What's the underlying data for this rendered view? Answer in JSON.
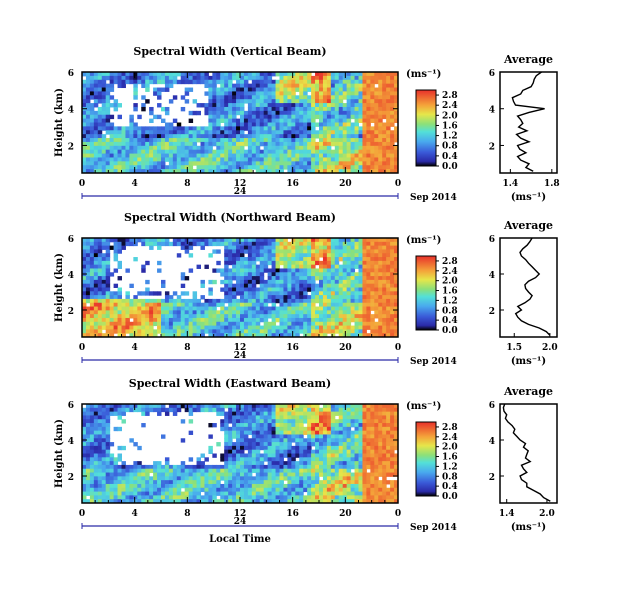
{
  "chart_data": [
    {
      "type": "heatmap",
      "title": "Spectral Width (Vertical Beam)",
      "ylabel": "Height (km)",
      "x_ticks": [
        "0",
        "4",
        "8",
        "12",
        "16",
        "20",
        "0"
      ],
      "xlim": [
        0,
        24
      ],
      "ylim": [
        0.5,
        6
      ],
      "y_ticks": [
        "2",
        "4",
        "6"
      ],
      "date_label": "24",
      "date_suffix": "Sep 2014",
      "colorbar": {
        "unit": "(ms⁻¹)",
        "ticks": [
          "0.0",
          "0.4",
          "0.8",
          "1.2",
          "1.6",
          "2.0",
          "2.4",
          "2.8"
        ],
        "range": [
          0,
          3.0
        ]
      },
      "profile": {
        "title": "Average",
        "xlabel": "(ms⁻¹)",
        "x_ticks": [
          "1.4",
          "1.8"
        ],
        "xlim": [
          1.3,
          1.85
        ],
        "y_ticks": [
          "2",
          "4",
          "6"
        ],
        "ylim": [
          0.5,
          6
        ],
        "heights": [
          0.6,
          0.8,
          1.0,
          1.2,
          1.4,
          1.6,
          1.8,
          2.0,
          2.2,
          2.4,
          2.6,
          2.8,
          3.0,
          3.2,
          3.4,
          3.6,
          3.8,
          4.0,
          4.2,
          4.4,
          4.6,
          4.8,
          5.0,
          5.2,
          5.4,
          5.6,
          5.8,
          6.0
        ],
        "values": [
          1.62,
          1.55,
          1.58,
          1.5,
          1.47,
          1.55,
          1.49,
          1.47,
          1.58,
          1.5,
          1.46,
          1.56,
          1.48,
          1.52,
          1.5,
          1.47,
          1.58,
          1.73,
          1.45,
          1.43,
          1.42,
          1.5,
          1.52,
          1.6,
          1.62,
          1.63,
          1.65,
          1.7
        ]
      }
    },
    {
      "type": "heatmap",
      "title": "Spectral Width (Northward Beam)",
      "ylabel": "Height (km)",
      "x_ticks": [
        "0",
        "4",
        "8",
        "12",
        "16",
        "20",
        "0"
      ],
      "xlim": [
        0,
        24
      ],
      "ylim": [
        0.5,
        6
      ],
      "y_ticks": [
        "2",
        "4",
        "6"
      ],
      "date_label": "24",
      "date_suffix": "Sep 2014",
      "colorbar": {
        "unit": "(ms⁻¹)",
        "ticks": [
          "0.0",
          "0.4",
          "0.8",
          "1.2",
          "1.6",
          "2.0",
          "2.4",
          "2.8"
        ],
        "range": [
          0,
          3.0
        ]
      },
      "profile": {
        "title": "Average",
        "xlabel": "(ms⁻¹)",
        "x_ticks": [
          "1.5",
          "2.0"
        ],
        "xlim": [
          1.3,
          2.1
        ],
        "y_ticks": [
          "2",
          "4",
          "6"
        ],
        "ylim": [
          0.5,
          6
        ],
        "heights": [
          0.6,
          0.8,
          1.0,
          1.2,
          1.4,
          1.6,
          1.8,
          2.0,
          2.2,
          2.4,
          2.6,
          2.8,
          3.0,
          3.2,
          3.4,
          3.6,
          3.8,
          4.0,
          4.2,
          4.4,
          4.6,
          4.8,
          5.0,
          5.2,
          5.4,
          5.6,
          5.8,
          6.0
        ],
        "values": [
          2.0,
          1.95,
          1.85,
          1.7,
          1.6,
          1.55,
          1.52,
          1.6,
          1.55,
          1.65,
          1.72,
          1.75,
          1.7,
          1.66,
          1.65,
          1.7,
          1.8,
          1.85,
          1.8,
          1.75,
          1.7,
          1.66,
          1.6,
          1.58,
          1.62,
          1.68,
          1.72,
          1.75
        ]
      }
    },
    {
      "type": "heatmap",
      "title": "Spectral Width (Eastward Beam)",
      "ylabel": "Height (km)",
      "xlabel": "Local Time",
      "x_ticks": [
        "0",
        "4",
        "8",
        "12",
        "16",
        "20",
        "0"
      ],
      "xlim": [
        0,
        24
      ],
      "ylim": [
        0.5,
        6
      ],
      "y_ticks": [
        "2",
        "4",
        "6"
      ],
      "date_label": "24",
      "date_suffix": "Sep 2014",
      "colorbar": {
        "unit": "(ms⁻¹)",
        "ticks": [
          "0.0",
          "0.4",
          "0.8",
          "1.2",
          "1.6",
          "2.0",
          "2.4",
          "2.8"
        ],
        "range": [
          0,
          3.0
        ]
      },
      "profile": {
        "title": "Average",
        "xlabel": "(ms⁻¹)",
        "x_ticks": [
          "1.4",
          "2.0"
        ],
        "xlim": [
          1.3,
          2.15
        ],
        "y_ticks": [
          "2",
          "4",
          "6"
        ],
        "ylim": [
          0.5,
          6
        ],
        "heights": [
          0.6,
          0.8,
          1.0,
          1.2,
          1.4,
          1.6,
          1.8,
          2.0,
          2.2,
          2.4,
          2.6,
          2.8,
          3.0,
          3.2,
          3.4,
          3.6,
          3.8,
          4.0,
          4.2,
          4.4,
          4.6,
          4.8,
          5.0,
          5.2,
          5.4,
          5.6,
          5.8,
          6.0
        ],
        "values": [
          2.05,
          1.95,
          1.9,
          1.8,
          1.7,
          1.7,
          1.62,
          1.6,
          1.7,
          1.65,
          1.62,
          1.75,
          1.68,
          1.7,
          1.72,
          1.65,
          1.68,
          1.6,
          1.55,
          1.5,
          1.52,
          1.48,
          1.42,
          1.38,
          1.4,
          1.36,
          1.35,
          1.37
        ]
      }
    }
  ]
}
